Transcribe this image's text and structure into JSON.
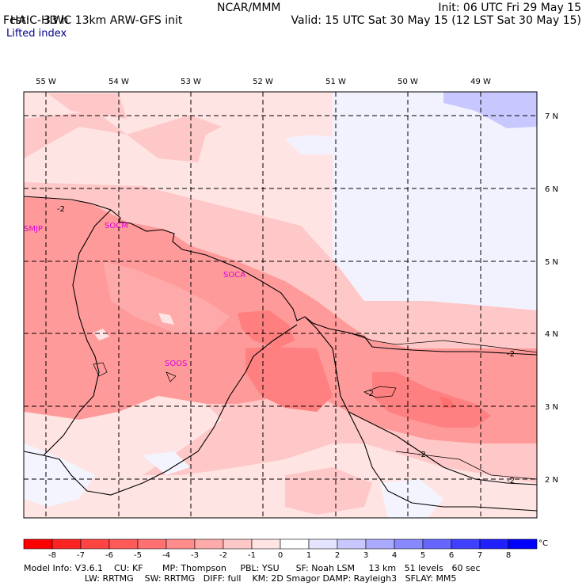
{
  "header": {
    "model": "HAIC-HIWC 13km ARW-GFS init",
    "center": "NCAR/MMM",
    "init": "Init: 06 UTC Fri 29 May 15",
    "fcst": "Fcst:    33 h",
    "valid": "Valid: 15 UTC Sat 30 May 15 (12 LST Sat 30 May 15)",
    "field": "Lifted index"
  },
  "map": {
    "lon_labels": [
      "55 W",
      "54 W",
      "53 W",
      "52 W",
      "51 W",
      "50 W",
      "49 W"
    ],
    "lat_labels": [
      "7 N",
      "6 N",
      "5 N",
      "4 N",
      "3 N",
      "2 N"
    ],
    "stations": [
      "SMJP",
      "SOCM",
      "SOCA",
      "SOOS"
    ],
    "contour_labels": [
      "-2",
      "-2",
      "-2",
      "-2",
      "-2"
    ]
  },
  "colorbar": {
    "ticks": [
      "-8",
      "-7",
      "-6",
      "-5",
      "-4",
      "-3",
      "-2",
      "-1",
      "0",
      "1",
      "2",
      "3",
      "4",
      "5",
      "6",
      "7",
      "8"
    ],
    "unit": "°C",
    "colors": [
      "#ff0000",
      "#ff2222",
      "#ff4444",
      "#ff5a5a",
      "#ff7070",
      "#ff8c8c",
      "#ffaaaa",
      "#ffc8c8",
      "#ffe4e4",
      "#ffffff",
      "#e4e4ff",
      "#c8c8ff",
      "#aaaaff",
      "#8888ff",
      "#6666ff",
      "#4040ff",
      "#2020ff",
      "#0000ff"
    ]
  },
  "info": {
    "line1": "Model Info: V3.6.1    CU: KF       MP: Thompson     PBL: YSU      SF: Noah LSM     13 km   51 levels   60 sec",
    "line2": "                      LW: RRTMG    SW: RRTMG   DIFF: full    KM: 2D Smagor DAMP: Rayleigh3   SFLAY: MM5"
  }
}
